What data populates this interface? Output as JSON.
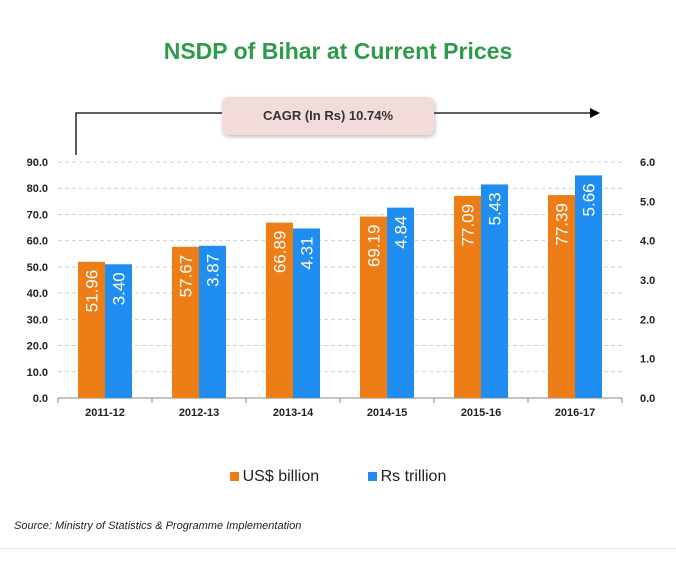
{
  "chart_data": {
    "type": "bar",
    "title": "NSDP of Bihar at Current Prices",
    "annotation": "CAGR  (In Rs) 10.74%",
    "categories": [
      "2011-12",
      "2012-13",
      "2013-14",
      "2014-15",
      "2015-16",
      "2016-17"
    ],
    "series": [
      {
        "name": "US$ billion",
        "axis": "left",
        "color": "#ed7d16",
        "values": [
          51.96,
          57.67,
          66.89,
          69.19,
          77.09,
          77.39
        ],
        "labels": [
          "51.96",
          "57.67",
          "66.89",
          "69.19",
          "77.09",
          "77.39"
        ]
      },
      {
        "name": "Rs trillion",
        "axis": "right",
        "color": "#1f8ef0",
        "values": [
          3.4,
          3.87,
          4.31,
          4.84,
          5.43,
          5.66
        ],
        "labels": [
          "3.40",
          "3.87",
          "4.31",
          "4.84",
          "5.43",
          "5.66"
        ]
      }
    ],
    "y_left": {
      "range": [
        0,
        90
      ],
      "ticks": [
        "0.0",
        "10.0",
        "20.0",
        "30.0",
        "40.0",
        "50.0",
        "60.0",
        "70.0",
        "80.0",
        "90.0"
      ]
    },
    "y_right": {
      "range": [
        0,
        6
      ],
      "ticks": [
        "0.0",
        "1.0",
        "2.0",
        "3.0",
        "4.0",
        "5.0",
        "6.0"
      ]
    },
    "grid": "dashed horizontal",
    "legend_placement": "bottom"
  },
  "source": "Source: Ministry of Statistics & Programme Implementation"
}
